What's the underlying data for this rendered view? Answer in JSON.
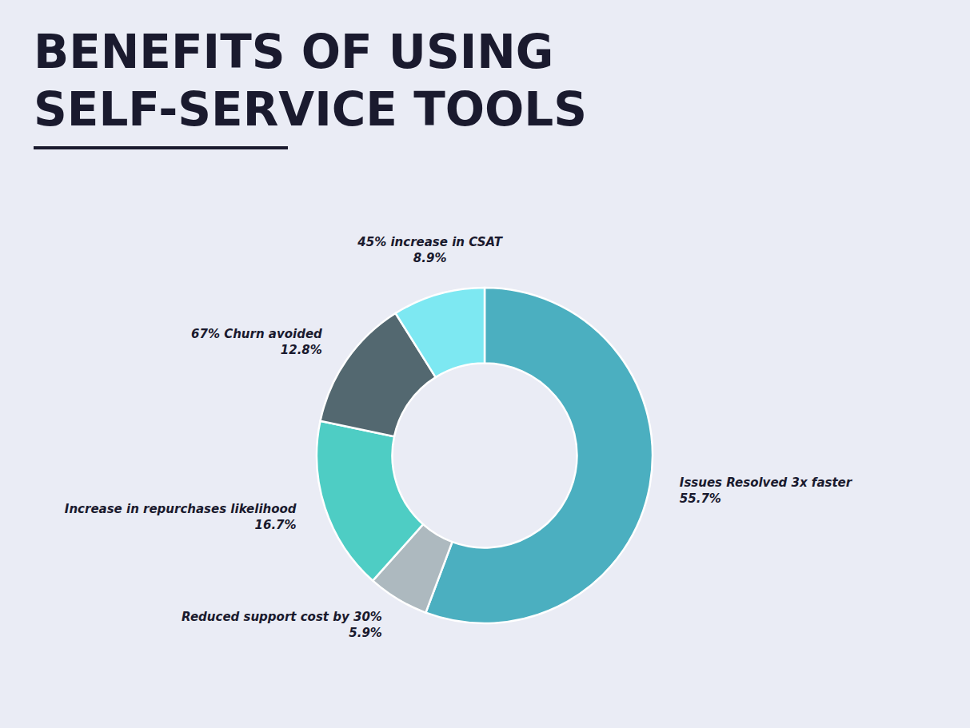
{
  "chart_data": {
    "type": "pie",
    "title": "BENEFITS OF USING\nSELF-SERVICE TOOLS",
    "categories": [
      "Issues Resolved 3x faster",
      "Reduced support cost by 30%",
      "Increase in repurchases likelihood",
      "67% Churn avoided",
      "45% increase in CSAT"
    ],
    "values": [
      55.7,
      5.9,
      16.7,
      12.8,
      8.9
    ],
    "value_labels": [
      "55.7%",
      "5.9%",
      "16.7%",
      "12.8%",
      "8.9%"
    ],
    "colors": [
      "#4bafc0",
      "#adb9bf",
      "#4ecdc4",
      "#536870",
      "#7de8f2"
    ],
    "data_labels": true
  }
}
